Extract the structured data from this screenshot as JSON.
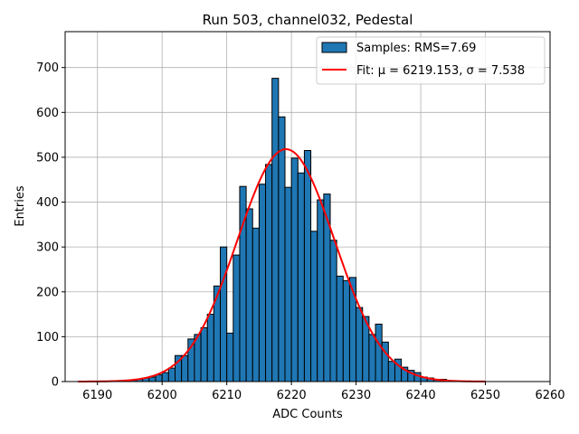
{
  "chart_data": {
    "type": "bar",
    "title": "Run 503, channel032, Pedestal",
    "xlabel": "ADC Counts",
    "ylabel": "Entries",
    "xlim": [
      6185,
      6260
    ],
    "ylim": [
      0,
      780
    ],
    "xticks": [
      6190,
      6200,
      6210,
      6220,
      6230,
      6240,
      6250,
      6260
    ],
    "yticks": [
      0,
      100,
      200,
      300,
      400,
      500,
      600,
      700
    ],
    "grid": true,
    "legend_position": "top-right",
    "colors": {
      "bars": "#1f77b4",
      "bar_edge": "#000000",
      "fit": "#ff0000",
      "grid": "#b0b0b0"
    },
    "series": [
      {
        "name": "Samples: RMS=7.69",
        "kind": "histogram",
        "bin_width": 1,
        "bin_left_edges": [
          6187,
          6188,
          6189,
          6190,
          6191,
          6192,
          6193,
          6194,
          6195,
          6196,
          6197,
          6198,
          6199,
          6200,
          6201,
          6202,
          6203,
          6204,
          6205,
          6206,
          6207,
          6208,
          6209,
          6210,
          6211,
          6212,
          6213,
          6214,
          6215,
          6216,
          6217,
          6218,
          6219,
          6220,
          6221,
          6222,
          6223,
          6224,
          6225,
          6226,
          6227,
          6228,
          6229,
          6230,
          6231,
          6232,
          6233,
          6234,
          6235,
          6236,
          6237,
          6238,
          6239,
          6240,
          6241,
          6242,
          6243,
          6244,
          6245,
          6246,
          6247,
          6248,
          6249
        ],
        "counts": [
          0,
          0,
          0,
          0,
          0,
          0,
          0,
          2,
          3,
          5,
          8,
          10,
          15,
          20,
          30,
          58,
          58,
          95,
          105,
          120,
          150,
          213,
          300,
          108,
          282,
          435,
          385,
          342,
          440,
          484,
          676,
          590,
          433,
          498,
          465,
          515,
          335,
          405,
          418,
          315,
          235,
          225,
          232,
          165,
          145,
          105,
          128,
          88,
          45,
          50,
          32,
          25,
          20,
          10,
          8,
          5,
          5,
          2,
          1,
          0,
          0,
          0,
          0
        ]
      },
      {
        "name": "Fit: μ = 6219.153, σ = 7.538",
        "kind": "gaussian_fit",
        "mu": 6219.153,
        "sigma": 7.538,
        "peak": 518,
        "x_range": [
          6187,
          6250
        ]
      }
    ]
  }
}
